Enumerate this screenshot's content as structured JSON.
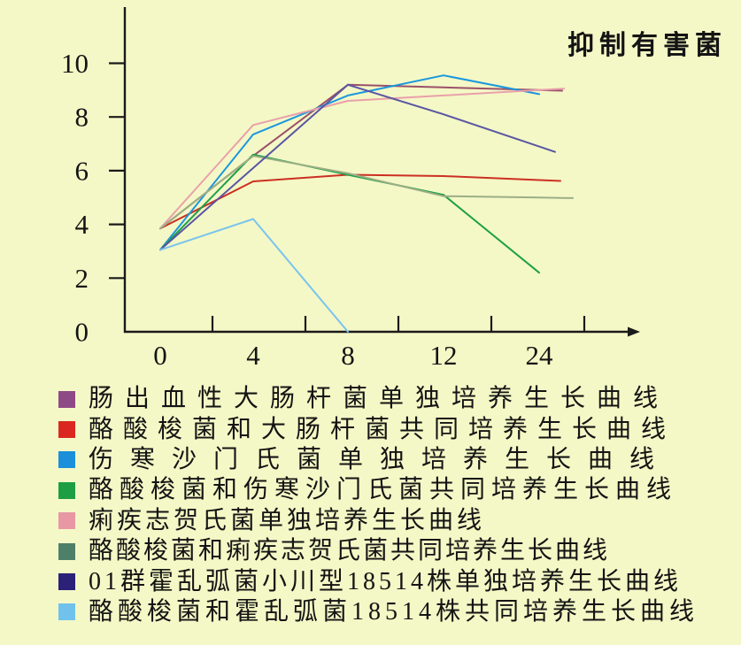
{
  "title": "抑制有害菌",
  "chart_data": {
    "type": "line",
    "title": "抑制有害菌",
    "x_values": [
      0,
      4,
      8,
      12,
      24
    ],
    "x_tick_labels": [
      "0",
      "4",
      "8",
      "12",
      "24"
    ],
    "y_tick_labels": [
      "10",
      "8",
      "6",
      "4",
      "2",
      "0"
    ],
    "ylim": [
      0,
      11
    ],
    "grid": false,
    "legend_position": "bottom-left",
    "background_color": "#f4f8c6",
    "axis_color": "#1a1a1a",
    "series": [
      {
        "name": "肠出血性大肠杆菌单独培养生长曲线",
        "swatch_color": "#8e4a86",
        "line_color": "#9a5169",
        "values": [
          3.85,
          6.55,
          9.2,
          9.1,
          9.0
        ]
      },
      {
        "name": "酪酸梭菌和大肠杆菌共同培养生长曲线",
        "swatch_color": "#da2820",
        "line_color": "#cc2f23",
        "values": [
          3.85,
          5.6,
          5.85,
          5.8,
          5.65
        ]
      },
      {
        "name": "伤寒沙门氏菌单独培养生长曲线",
        "swatch_color": "#1b8fd9",
        "line_color": "#1a97de",
        "values": [
          3.05,
          7.35,
          8.8,
          9.55,
          8.85
        ]
      },
      {
        "name": "酪酸梭菌和伤寒沙门氏菌共同培养生长曲线",
        "swatch_color": "#1d9e44",
        "line_color": "#1ea048",
        "values": [
          3.05,
          6.6,
          5.85,
          5.1,
          2.2
        ]
      },
      {
        "name": "痢疾志贺氏菌单独培养生长曲线",
        "swatch_color": "#e798a4",
        "line_color": "#e9a0aa",
        "values": [
          3.85,
          7.7,
          8.6,
          8.8,
          9.0
        ]
      },
      {
        "name": "酪酸梭菌和痢疾志贺氏菌共同培养生长曲线",
        "swatch_color": "#4e8069",
        "line_color": "#9cae85",
        "values": [
          3.85,
          6.55,
          5.9,
          5.05,
          5.0
        ]
      },
      {
        "name": "01群霍乱弧菌小川型18514株单独培养生长曲线",
        "swatch_color": "#2b2178",
        "line_color": "#5a55a3",
        "values": [
          3.05,
          6.1,
          9.2,
          8.1,
          6.9
        ]
      },
      {
        "name": "酪酸梭菌和霍乱弧菌18514株共同培养生长曲线",
        "swatch_color": "#70c2ec",
        "line_color": "#7ac4ed",
        "values": [
          3.05,
          4.2,
          0,
          null,
          null
        ]
      }
    ]
  }
}
